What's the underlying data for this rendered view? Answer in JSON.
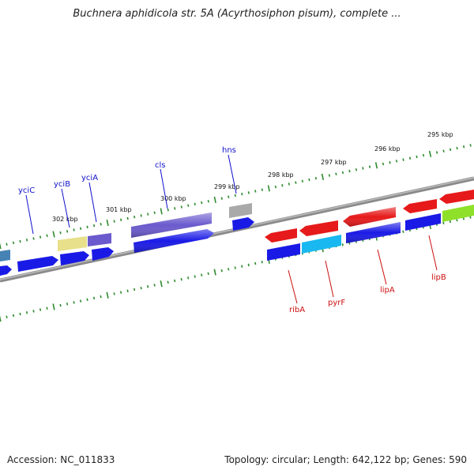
{
  "title": "Buchnera aphidicola str. 5A (Acyrthosiphon pisum), complete ...",
  "accession": "Accession: NC_011833",
  "summary": "Topology: circular; Length: 642,122 bp; Genes: 590",
  "colors": {
    "backbone": "#7a7a7a",
    "tick": "#2e8b2e",
    "forward_label": "#1010cc",
    "reverse_label": "#cc1010",
    "cds_blue": "#1a1ae6",
    "cds_red": "#e61a1a",
    "cds_purple": "#6a5acd",
    "cds_yellow": "#e8e08a",
    "cds_gray": "#a9a9a9",
    "cds_cyan": "#19b8f0",
    "cds_lime": "#8fe02a",
    "cds_steel": "#4682b4"
  },
  "kbp_labels": [
    "295 kbp",
    "296 kbp",
    "297 kbp",
    "298 kbp",
    "299 kbp",
    "300 kbp",
    "301 kbp",
    "302 kbp"
  ],
  "gene_labels_top": [
    "yciC",
    "yciB",
    "yciA",
    "cls",
    "hns"
  ],
  "gene_labels_bottom": [
    "ribA",
    "pyrF",
    "lipA",
    "lipB"
  ]
}
